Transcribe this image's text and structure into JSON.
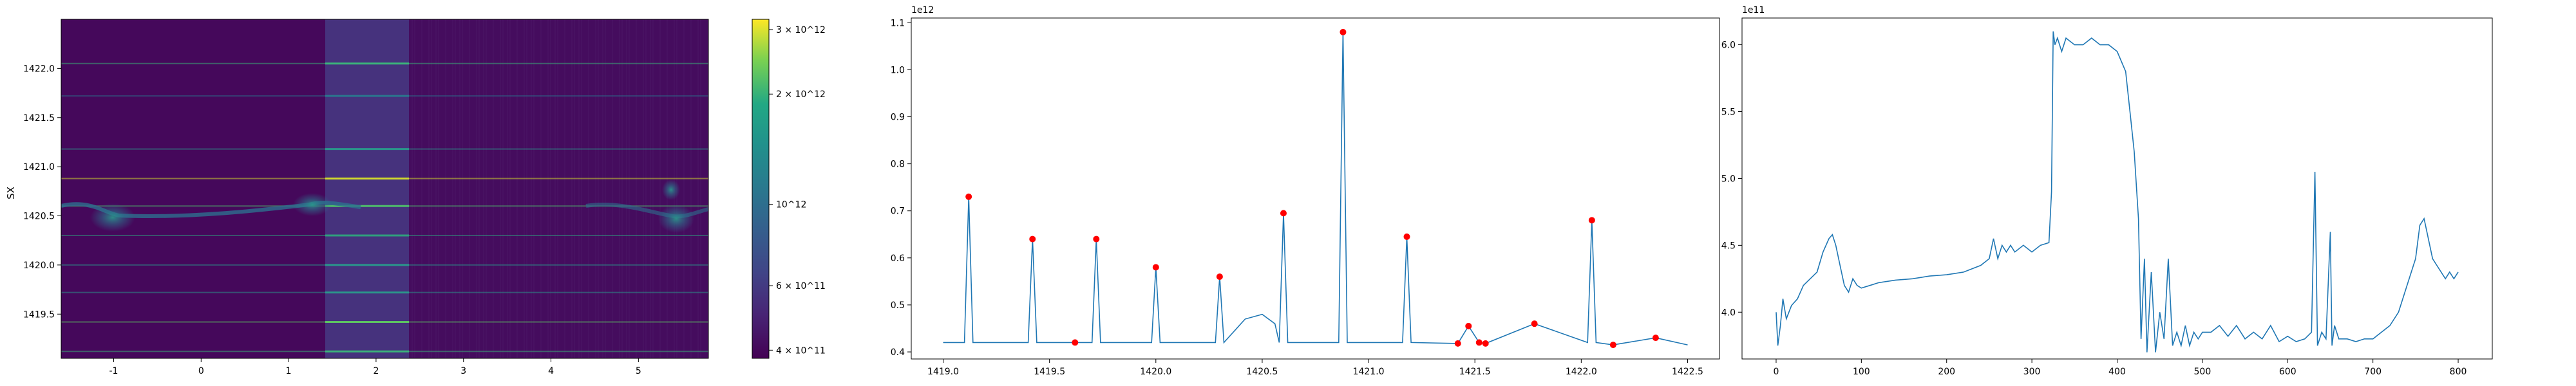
{
  "chart_data": [
    {
      "type": "heatmap",
      "ylabel": "SX",
      "xlim": [
        -1.6,
        5.8
      ],
      "ylim": [
        1419.05,
        1422.5
      ],
      "xticks": [
        "-1",
        "0",
        "1",
        "2",
        "3",
        "4",
        "5"
      ],
      "yticks": [
        "1419.5",
        "1420.0",
        "1420.5",
        "1421.0",
        "1421.5",
        "1422.0"
      ],
      "colormap": "viridis",
      "colorbar": {
        "scale": "log",
        "ticks": [
          "4 × 10^11",
          "6 × 10^11",
          "10^12",
          "2 × 10^12",
          "3 × 10^12"
        ],
        "min": 380000000000.0,
        "max": 3200000000000.0
      }
    },
    {
      "type": "line",
      "offset_label": "1e12",
      "xlim": [
        1418.85,
        1422.65
      ],
      "ylim": [
        0.385,
        1.11
      ],
      "xticks": [
        "1419.0",
        "1419.5",
        "1420.0",
        "1420.5",
        "1421.0",
        "1421.5",
        "1422.0",
        "1422.5"
      ],
      "yticks": [
        "0.4",
        "0.5",
        "0.6",
        "0.7",
        "0.8",
        "0.9",
        "1.0",
        "1.1"
      ],
      "line_color": "#1f77b4",
      "marker_color": "#ff0000",
      "peaks": [
        {
          "x": 1419.12,
          "y": 0.73
        },
        {
          "x": 1419.42,
          "y": 0.64
        },
        {
          "x": 1419.62,
          "y": 0.42
        },
        {
          "x": 1419.72,
          "y": 0.64
        },
        {
          "x": 1420.0,
          "y": 0.58
        },
        {
          "x": 1420.3,
          "y": 0.56
        },
        {
          "x": 1420.6,
          "y": 0.695
        },
        {
          "x": 1420.88,
          "y": 1.08
        },
        {
          "x": 1421.18,
          "y": 0.645
        },
        {
          "x": 1421.42,
          "y": 0.418
        },
        {
          "x": 1421.47,
          "y": 0.455
        },
        {
          "x": 1421.52,
          "y": 0.42
        },
        {
          "x": 1421.55,
          "y": 0.418
        },
        {
          "x": 1421.78,
          "y": 0.46
        },
        {
          "x": 1422.05,
          "y": 0.68
        },
        {
          "x": 1422.15,
          "y": 0.415
        },
        {
          "x": 1422.35,
          "y": 0.43
        }
      ],
      "baseline": 0.42
    },
    {
      "type": "line",
      "offset_label": "1e11",
      "xlim": [
        -40,
        840
      ],
      "ylim": [
        3.65,
        6.2
      ],
      "xticks": [
        "0",
        "100",
        "200",
        "300",
        "400",
        "500",
        "600",
        "700",
        "800"
      ],
      "yticks": [
        "4.0",
        "4.5",
        "5.0",
        "5.5",
        "6.0"
      ],
      "line_color": "#1f77b4",
      "series": [
        {
          "x": [
            0,
            2,
            5,
            8,
            12,
            18,
            25,
            32,
            40,
            48,
            55,
            62,
            66,
            70,
            75,
            80,
            85,
            90,
            95,
            100,
            110,
            120,
            140,
            160,
            180,
            200,
            220,
            240,
            250,
            255,
            260,
            265,
            270,
            275,
            280,
            290,
            300,
            310,
            320,
            323,
            325,
            327,
            330,
            335,
            340,
            350,
            360,
            370,
            380,
            390,
            400,
            410,
            415,
            420,
            425,
            428,
            432,
            435,
            440,
            445,
            450,
            455,
            460,
            465,
            470,
            475,
            480,
            485,
            490,
            495,
            500,
            510,
            520,
            530,
            540,
            550,
            560,
            570,
            580,
            590,
            600,
            610,
            620,
            628,
            632,
            635,
            640,
            645,
            650,
            652,
            655,
            660,
            670,
            680,
            690,
            700,
            710,
            720,
            730,
            740,
            750,
            755,
            760,
            765,
            770,
            775,
            780,
            785,
            790,
            795,
            800
          ],
          "y": [
            4.0,
            3.75,
            3.9,
            4.1,
            3.95,
            4.05,
            4.1,
            4.2,
            4.25,
            4.3,
            4.45,
            4.55,
            4.58,
            4.5,
            4.35,
            4.2,
            4.15,
            4.25,
            4.2,
            4.18,
            4.2,
            4.22,
            4.24,
            4.25,
            4.27,
            4.28,
            4.3,
            4.35,
            4.4,
            4.55,
            4.4,
            4.5,
            4.45,
            4.5,
            4.45,
            4.5,
            4.45,
            4.5,
            4.52,
            4.9,
            6.1,
            6.0,
            6.05,
            5.95,
            6.05,
            6.0,
            6.0,
            6.05,
            6.0,
            6.0,
            5.95,
            5.8,
            5.5,
            5.2,
            4.7,
            3.8,
            4.4,
            3.7,
            4.3,
            3.7,
            4.0,
            3.8,
            4.4,
            3.75,
            3.85,
            3.75,
            3.9,
            3.75,
            3.85,
            3.8,
            3.85,
            3.85,
            3.9,
            3.82,
            3.9,
            3.8,
            3.85,
            3.8,
            3.9,
            3.78,
            3.82,
            3.78,
            3.8,
            3.85,
            5.05,
            3.75,
            3.85,
            3.8,
            4.6,
            3.75,
            3.9,
            3.8,
            3.8,
            3.78,
            3.8,
            3.8,
            3.85,
            3.9,
            4.0,
            4.2,
            4.4,
            4.65,
            4.7,
            4.55,
            4.4,
            4.35,
            4.3,
            4.25,
            4.3,
            4.25,
            4.3
          ]
        }
      ]
    }
  ]
}
